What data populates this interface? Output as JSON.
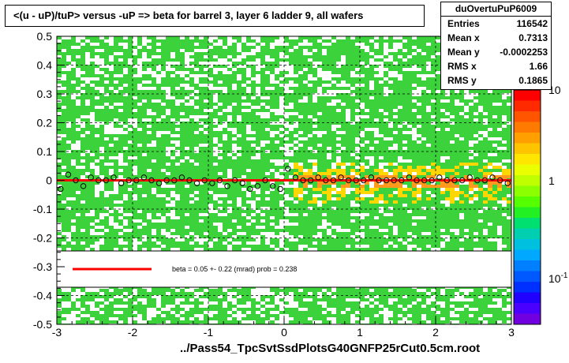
{
  "title": "<(u - uP)/tuP> versus  -uP => beta for barrel 3, layer 6 ladder 9, all wafers",
  "stats": {
    "name": "duOvertuPuP6009",
    "rows": [
      {
        "label": "Entries",
        "value": "116542"
      },
      {
        "label": "Mean x",
        "value": "0.7313"
      },
      {
        "label": "Mean y",
        "value": "-0.0002253"
      },
      {
        "label": "RMS x",
        "value": "1.66"
      },
      {
        "label": "RMS y",
        "value": "0.1865"
      }
    ]
  },
  "legend": {
    "line_color": "#ff0000",
    "text": "beta =     0.05 +-   0.22 (mrad) prob = 0.238"
  },
  "footer": "../Pass54_TpcSvtSsdPlotsG40GNFP25rCut0.5cm.root",
  "chart_data": {
    "type": "heatmap",
    "xlim": [
      -3,
      3
    ],
    "ylim": [
      -0.5,
      0.5
    ],
    "x_ticks": [
      "-3",
      "-2",
      "-1",
      "0",
      "1",
      "2",
      "3"
    ],
    "y_ticks": [
      "-0.5",
      "-0.4",
      "-0.3",
      "-0.2",
      "-0.1",
      "0",
      "0.1",
      "0.2",
      "0.3",
      "0.4",
      "0.5"
    ],
    "grid": true,
    "colorbar_scale": "log",
    "colorbar_labels": [
      "10",
      "1",
      "10"
    ],
    "colorbar_label_sup": [
      "",
      "",
      "-1"
    ],
    "colors": {
      "background": "#3cd23c",
      "dense_yellow": "#ffd700",
      "dense_orange": "#ff9a1e",
      "sparse_white": "#ffffff",
      "fit_line": "#ff0000",
      "points": "#000000"
    },
    "fit": {
      "slope_mrad": 0.05,
      "error_mrad": 0.22,
      "prob": 0.238,
      "intercept": 0.0
    },
    "profile_points": [
      {
        "x": -2.95,
        "y": -0.03
      },
      {
        "x": -2.85,
        "y": 0.02
      },
      {
        "x": -2.75,
        "y": 0.0
      },
      {
        "x": -2.65,
        "y": -0.02
      },
      {
        "x": -2.55,
        "y": 0.01
      },
      {
        "x": -2.45,
        "y": 0.0
      },
      {
        "x": -2.35,
        "y": 0.0
      },
      {
        "x": -2.25,
        "y": 0.01
      },
      {
        "x": -2.15,
        "y": -0.01
      },
      {
        "x": -2.05,
        "y": 0.0
      },
      {
        "x": -1.95,
        "y": 0.0
      },
      {
        "x": -1.85,
        "y": 0.01
      },
      {
        "x": -1.75,
        "y": 0.0
      },
      {
        "x": -1.65,
        "y": -0.01
      },
      {
        "x": -1.55,
        "y": 0.0
      },
      {
        "x": -1.45,
        "y": 0.0
      },
      {
        "x": -1.35,
        "y": 0.01
      },
      {
        "x": -1.25,
        "y": 0.0
      },
      {
        "x": -1.15,
        "y": -0.01
      },
      {
        "x": -1.05,
        "y": 0.0
      },
      {
        "x": -0.95,
        "y": -0.01
      },
      {
        "x": -0.85,
        "y": 0.0
      },
      {
        "x": -0.75,
        "y": -0.02
      },
      {
        "x": -0.65,
        "y": 0.0
      },
      {
        "x": -0.55,
        "y": -0.01
      },
      {
        "x": -0.45,
        "y": -0.03
      },
      {
        "x": -0.35,
        "y": -0.02
      },
      {
        "x": -0.25,
        "y": 0.0
      },
      {
        "x": -0.15,
        "y": -0.02
      },
      {
        "x": -0.05,
        "y": -0.03
      },
      {
        "x": 0.05,
        "y": 0.04
      },
      {
        "x": 0.15,
        "y": 0.01
      },
      {
        "x": 0.25,
        "y": 0.0
      },
      {
        "x": 0.35,
        "y": 0.0
      },
      {
        "x": 0.45,
        "y": 0.01
      },
      {
        "x": 0.55,
        "y": 0.0
      },
      {
        "x": 0.65,
        "y": 0.0
      },
      {
        "x": 0.75,
        "y": 0.01
      },
      {
        "x": 0.85,
        "y": 0.0
      },
      {
        "x": 0.95,
        "y": 0.0
      },
      {
        "x": 1.05,
        "y": 0.0
      },
      {
        "x": 1.15,
        "y": 0.01
      },
      {
        "x": 1.25,
        "y": 0.0
      },
      {
        "x": 1.35,
        "y": 0.0
      },
      {
        "x": 1.45,
        "y": 0.0
      },
      {
        "x": 1.55,
        "y": 0.0
      },
      {
        "x": 1.65,
        "y": 0.01
      },
      {
        "x": 1.75,
        "y": 0.0
      },
      {
        "x": 1.85,
        "y": 0.0
      },
      {
        "x": 1.95,
        "y": 0.0
      },
      {
        "x": 2.05,
        "y": 0.01
      },
      {
        "x": 2.15,
        "y": 0.0
      },
      {
        "x": 2.25,
        "y": 0.0
      },
      {
        "x": 2.35,
        "y": 0.0
      },
      {
        "x": 2.45,
        "y": 0.01
      },
      {
        "x": 2.55,
        "y": 0.0
      },
      {
        "x": 2.65,
        "y": 0.0
      },
      {
        "x": 2.75,
        "y": 0.01
      },
      {
        "x": 2.85,
        "y": 0.0
      },
      {
        "x": 2.95,
        "y": -0.01
      }
    ]
  }
}
